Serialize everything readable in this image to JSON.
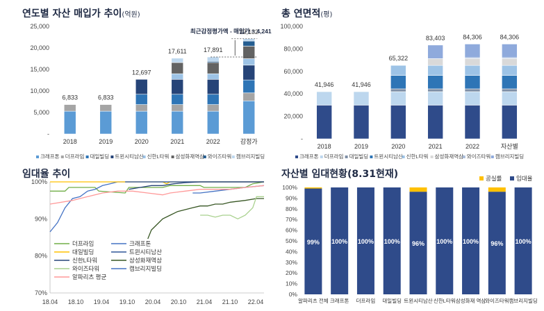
{
  "titles": {
    "c1": {
      "main": "연도별 자산 매입가 추이",
      "unit": "(억원)"
    },
    "c2": {
      "main": "총 연면적",
      "unit": "(평)"
    },
    "c3": {
      "main": "임대율 추이",
      "unit": ""
    },
    "c4": {
      "main": "자산별 임대현황(8.31현재)",
      "unit": ""
    }
  },
  "chart_data": [
    {
      "type": "bar",
      "stacked": true,
      "title": "연도별 자산 매입가 추이(억원)",
      "categories": [
        "2018",
        "2019",
        "2020",
        "2021",
        "2022",
        "감정가"
      ],
      "totals": [
        6833,
        6833,
        12697,
        17611,
        17891,
        22132
      ],
      "total_labels": [
        "6,833",
        "6,833",
        "12,697",
        "17,611",
        "17,891",
        "22,132"
      ],
      "y_ticks": [
        "25,000",
        "20,000",
        "15,000",
        "10,000",
        "5,000",
        "-"
      ],
      "ylim": [
        0,
        25000
      ],
      "annotation": "최근감정평가액 - 매입가 = 4,241",
      "legend": [
        "크래프톤",
        "더프라임",
        "대일빌딩",
        "트윈시티남산",
        "신한L타워",
        "삼성화재역삼",
        "와이즈타워",
        "캠브리지빌딩"
      ],
      "series": [
        {
          "name": "크래프톤",
          "color": "#5b9bd5",
          "values": [
            5300,
            5300,
            5300,
            5300,
            5300,
            7700
          ]
        },
        {
          "name": "더프라임",
          "color": "#a5a5a5",
          "values": [
            1533,
            1533,
            1533,
            1533,
            1533,
            1850
          ]
        },
        {
          "name": "대일빌딩",
          "color": "#2e75b6",
          "values": [
            0,
            0,
            2400,
            2400,
            2400,
            3000
          ]
        },
        {
          "name": "트윈시티남산",
          "color": "#264478",
          "values": [
            0,
            0,
            3464,
            3464,
            3464,
            3450
          ]
        },
        {
          "name": "신한L타워",
          "color": "#9dc3e6",
          "values": [
            0,
            0,
            0,
            1300,
            1300,
            1500
          ]
        },
        {
          "name": "삼성화재역삼",
          "color": "#636363",
          "values": [
            0,
            0,
            0,
            2600,
            2600,
            2900
          ]
        },
        {
          "name": "와이즈타워",
          "color": "#255e91",
          "values": [
            0,
            0,
            0,
            0,
            280,
            1200
          ]
        },
        {
          "name": "캠브리지빌딩",
          "color": "#bdd7ee",
          "values": [
            0,
            0,
            0,
            1014,
            1014,
            532
          ]
        }
      ]
    },
    {
      "type": "bar",
      "stacked": true,
      "title": "총 연면적(평)",
      "categories": [
        "2018",
        "2019",
        "2020",
        "2021",
        "2022",
        "자산별"
      ],
      "totals": [
        41946,
        41946,
        65322,
        83403,
        84306,
        84306
      ],
      "total_labels": [
        "41,946",
        "41,946",
        "65,322",
        "83,403",
        "84,306",
        "84,306"
      ],
      "y_ticks": [
        "100,000",
        "80,000",
        "60,000",
        "40,000",
        "20,000",
        "-"
      ],
      "ylim": [
        0,
        100000
      ],
      "legend": [
        "크래프톤",
        "더프라임",
        "대일빌딩",
        "트윈시티남산",
        "신한L타워",
        "삼성화재역삼",
        "와이즈타워",
        "캠브리지빌딩"
      ],
      "series": [
        {
          "name": "크래프톤",
          "color": "#2f4b8a",
          "values": [
            30000,
            30000,
            30000,
            30000,
            30000,
            30000
          ]
        },
        {
          "name": "더프라임",
          "color": "#bdd7ee",
          "values": [
            11946,
            11946,
            11946,
            11946,
            11946,
            11946
          ]
        },
        {
          "name": "대일빌딩",
          "color": "#7f8fa6",
          "values": [
            0,
            0,
            2500,
            2500,
            2500,
            2500
          ]
        },
        {
          "name": "트윈시티남산",
          "color": "#2e75b6",
          "values": [
            0,
            0,
            12000,
            12000,
            12000,
            12000
          ]
        },
        {
          "name": "신한L타워",
          "color": "#9dc3e6",
          "values": [
            0,
            0,
            8876,
            8876,
            8876,
            8876
          ]
        },
        {
          "name": "삼성화재역삼",
          "color": "#d9d9d9",
          "values": [
            0,
            0,
            0,
            6000,
            6000,
            6000
          ]
        },
        {
          "name": "와이즈타워",
          "color": "#a9bcd9",
          "values": [
            0,
            0,
            0,
            0,
            903,
            903
          ]
        },
        {
          "name": "캠브리지빌딩",
          "color": "#8faadc",
          "values": [
            0,
            0,
            0,
            12081,
            12081,
            12081
          ]
        }
      ]
    },
    {
      "type": "line",
      "title": "임대율 추이",
      "x_ticks": [
        "18.04",
        "18.10",
        "19.04",
        "19.10",
        "20.04",
        "20.10",
        "21.04",
        "21.10",
        "22.04"
      ],
      "y_ticks": [
        "100%",
        "90%",
        "80%",
        "70%"
      ],
      "ylim": [
        70,
        100
      ],
      "xlim": [
        0,
        57
      ],
      "legend_placement": "bottom-left",
      "series": [
        {
          "name": "더프라임",
          "color": "#70ad47",
          "points": [
            [
              0,
              97.5
            ],
            [
              4,
              97.5
            ],
            [
              5,
              98.5
            ],
            [
              12,
              98.5
            ],
            [
              13,
              97.5
            ],
            [
              20,
              97
            ],
            [
              21,
              98.5
            ],
            [
              30,
              98.5
            ],
            [
              32,
              99
            ],
            [
              40,
              99
            ],
            [
              41,
              98.5
            ],
            [
              52,
              98.5
            ],
            [
              54,
              99.5
            ],
            [
              57,
              100
            ]
          ]
        },
        {
          "name": "크래프톤",
          "color": "#4472c4",
          "points": [
            [
              0,
              86.5
            ],
            [
              2,
              89
            ],
            [
              4,
              93
            ],
            [
              6,
              95.5
            ],
            [
              8,
              96
            ],
            [
              10,
              97.5
            ],
            [
              12,
              98
            ],
            [
              14,
              99
            ],
            [
              16,
              99.5
            ],
            [
              18,
              100
            ],
            [
              57,
              100
            ]
          ]
        },
        {
          "name": "대일빌딩",
          "color": "#ffc000",
          "points": [
            [
              0,
              100
            ],
            [
              30,
              100
            ],
            [
              31,
              99.5
            ],
            [
              32,
              100
            ],
            [
              57,
              100
            ]
          ]
        },
        {
          "name": "트윈시티남산",
          "color": "#2f5597",
          "points": [
            [
              20,
              100
            ],
            [
              57,
              100
            ]
          ]
        },
        {
          "name": "신한L타워",
          "color": "#264478",
          "points": [
            [
              21,
              98
            ],
            [
              24,
              98.5
            ],
            [
              27,
              99
            ],
            [
              30,
              99
            ],
            [
              33,
              99.5
            ],
            [
              36,
              99.8
            ],
            [
              40,
              100
            ],
            [
              57,
              100
            ]
          ]
        },
        {
          "name": "삼성화재역삼",
          "color": "#375623",
          "points": [
            [
              25,
              84.5
            ],
            [
              26,
              84.5
            ],
            [
              27,
              87
            ],
            [
              28,
              88
            ],
            [
              30,
              90
            ],
            [
              32,
              91
            ],
            [
              34,
              92
            ],
            [
              36,
              92.5
            ],
            [
              38,
              93
            ],
            [
              40,
              93.5
            ],
            [
              42,
              93.5
            ],
            [
              44,
              94
            ],
            [
              46,
              94
            ],
            [
              48,
              94.5
            ],
            [
              52,
              95
            ],
            [
              55,
              95.5
            ],
            [
              57,
              95.5
            ]
          ]
        },
        {
          "name": "와이즈타워",
          "color": "#a9d18e",
          "points": [
            [
              40,
              91
            ],
            [
              42,
              91
            ],
            [
              44,
              90.5
            ],
            [
              46,
              91
            ],
            [
              48,
              91
            ],
            [
              50,
              90
            ],
            [
              52,
              91
            ],
            [
              54,
              93
            ],
            [
              55,
              96
            ],
            [
              57,
              96
            ]
          ]
        },
        {
          "name": "캠브리지빌딩",
          "color": "#4472c4",
          "points": [
            [
              38,
              97
            ],
            [
              40,
              97
            ],
            [
              44,
              97.5
            ],
            [
              48,
              98
            ],
            [
              52,
              98.5
            ],
            [
              57,
              99
            ]
          ]
        },
        {
          "name": "알파리츠 평균",
          "color": "#ff9999",
          "points": [
            [
              0,
              94
            ],
            [
              6,
              95
            ],
            [
              10,
              96
            ],
            [
              14,
              97
            ],
            [
              18,
              97.5
            ],
            [
              22,
              97.5
            ],
            [
              26,
              97
            ],
            [
              30,
              96.5
            ],
            [
              32,
              97
            ],
            [
              36,
              97.5
            ],
            [
              40,
              98
            ],
            [
              44,
              98
            ],
            [
              48,
              98
            ],
            [
              52,
              98.5
            ],
            [
              57,
              99
            ]
          ]
        }
      ]
    },
    {
      "type": "bar",
      "stacked": true,
      "title": "자산별 임대현황(8.31현재)",
      "categories": [
        "알파리츠 전체",
        "크래프톤",
        "더프라임",
        "대일빌딩",
        "트윈시티남산",
        "신한L타워",
        "삼성화재 역삼",
        "와이즈타워",
        "캠브리지빌딩"
      ],
      "y_ticks": [
        "100%",
        "90%",
        "80%",
        "70%",
        "60%",
        "50%",
        "40%",
        "30%",
        "20%",
        "10%",
        "0%"
      ],
      "ylim": [
        0,
        100
      ],
      "legend_placement": "top-right",
      "series": [
        {
          "name": "임대율",
          "color": "#2f4b8a",
          "values": [
            99,
            100,
            100,
            100,
            96,
            100,
            100,
            96,
            100
          ],
          "labels": [
            "99%",
            "100%",
            "100%",
            "100%",
            "96%",
            "100%",
            "100%",
            "96%",
            "100%"
          ]
        },
        {
          "name": "공실률",
          "color": "#ffc000",
          "values": [
            1,
            0,
            0,
            0,
            4,
            0,
            0,
            4,
            0
          ]
        }
      ]
    }
  ]
}
